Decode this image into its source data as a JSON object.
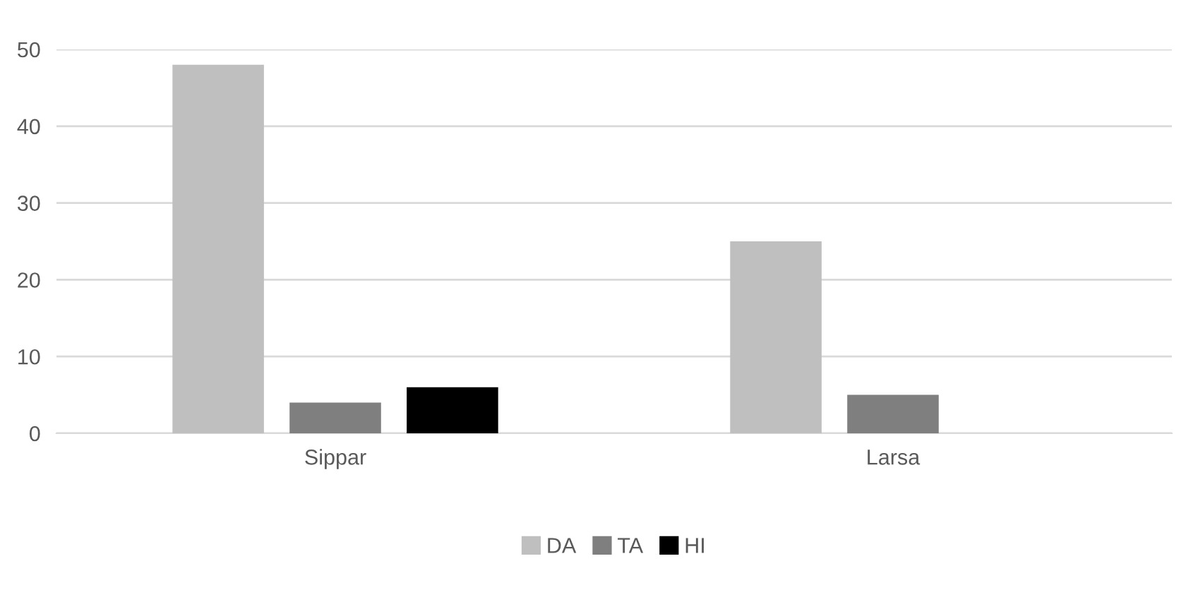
{
  "chart_data": {
    "type": "bar",
    "categories": [
      "Sippar",
      "Larsa"
    ],
    "series": [
      {
        "name": "DA",
        "color": "#bfbfbf",
        "values": [
          48,
          25
        ]
      },
      {
        "name": "TA",
        "color": "#7f7f7f",
        "values": [
          4,
          5
        ]
      },
      {
        "name": "HI",
        "color": "#000000",
        "values": [
          6,
          null
        ]
      }
    ],
    "ylim": [
      0,
      50
    ],
    "yticks": [
      0,
      10,
      20,
      30,
      40,
      50
    ],
    "grid": "y",
    "legend": "bottom"
  }
}
